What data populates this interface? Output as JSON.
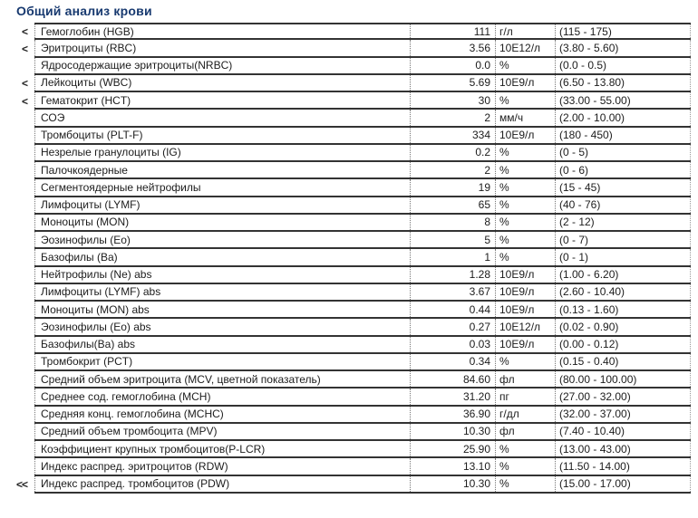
{
  "title": "Общий анализ крови",
  "colors": {
    "title_text": "#17396f",
    "grid_line": "#333333",
    "dotted_separator": "#777777",
    "body_text": "#1c1c1c"
  },
  "table": {
    "rows": [
      {
        "flag": "<",
        "name": "Гемоглобин (HGB)",
        "value": "111",
        "unit": "г/л",
        "range": "(115 - 175)"
      },
      {
        "flag": "<",
        "name": "Эритроциты (RBC)",
        "value": "3.56",
        "unit": "10E12/л",
        "range": "(3.80 - 5.60)"
      },
      {
        "flag": "",
        "name": "Ядросодержащие эритроциты(NRBC)",
        "value": "0.0",
        "unit": "%",
        "range": "(0.0 - 0.5)"
      },
      {
        "flag": "<",
        "name": "Лейкоциты (WBC)",
        "value": "5.69",
        "unit": "10E9/л",
        "range": "(6.50 - 13.80)"
      },
      {
        "flag": "<",
        "name": "Гематокрит (HCT)",
        "value": "30",
        "unit": "%",
        "range": "(33.00 - 55.00)"
      },
      {
        "flag": "",
        "name": "СОЭ",
        "value": "2",
        "unit": "мм/ч",
        "range": "(2.00 - 10.00)"
      },
      {
        "flag": "",
        "name": "Тромбоциты (PLT-F)",
        "value": "334",
        "unit": "10E9/л",
        "range": "(180 - 450)"
      },
      {
        "flag": "",
        "name": "Незрелые гранулоциты (IG)",
        "value": "0.2",
        "unit": "%",
        "range": "(0 - 5)"
      },
      {
        "flag": "",
        "name": "Палочкоядерные",
        "value": "2",
        "unit": "%",
        "range": "(0 - 6)"
      },
      {
        "flag": "",
        "name": "Сегментоядерные нейтрофилы",
        "value": "19",
        "unit": "%",
        "range": "(15 - 45)"
      },
      {
        "flag": "",
        "name": "Лимфоциты (LYMF)",
        "value": "65",
        "unit": "%",
        "range": "(40 - 76)"
      },
      {
        "flag": "",
        "name": "Моноциты (MON)",
        "value": "8",
        "unit": "%",
        "range": "(2 - 12)"
      },
      {
        "flag": "",
        "name": "Эозинофилы (Eo)",
        "value": "5",
        "unit": "%",
        "range": "(0 - 7)"
      },
      {
        "flag": "",
        "name": "Базофилы (Ba)",
        "value": "1",
        "unit": "%",
        "range": "(0 - 1)"
      },
      {
        "flag": "",
        "name": "Нейтрофилы (Ne) abs",
        "value": "1.28",
        "unit": "10E9/л",
        "range": "(1.00 - 6.20)"
      },
      {
        "flag": "",
        "name": "Лимфоциты (LYMF) abs",
        "value": "3.67",
        "unit": "10E9/л",
        "range": "(2.60 - 10.40)"
      },
      {
        "flag": "",
        "name": "Моноциты (MON) abs",
        "value": "0.44",
        "unit": "10E9/л",
        "range": "(0.13 - 1.60)"
      },
      {
        "flag": "",
        "name": "Эозинофилы (Eo) abs",
        "value": "0.27",
        "unit": "10E12/л",
        "range": "(0.02 - 0.90)"
      },
      {
        "flag": "",
        "name": "Базофилы(Ba) abs",
        "value": "0.03",
        "unit": "10E9/л",
        "range": "(0.00 - 0.12)"
      },
      {
        "flag": "",
        "name": "Тромбокрит (PCT)",
        "value": "0.34",
        "unit": "%",
        "range": "(0.15 - 0.40)"
      },
      {
        "flag": "",
        "name": "Средний объем эритроцита (MCV, цветной показатель)",
        "value": "84.60",
        "unit": "фл",
        "range": "(80.00 - 100.00)"
      },
      {
        "flag": "",
        "name": "Среднее сод. гемоглобина (MCH)",
        "value": "31.20",
        "unit": "пг",
        "range": "(27.00 - 32.00)"
      },
      {
        "flag": "",
        "name": "Средняя конц. гемоглобина (MCHC)",
        "value": "36.90",
        "unit": "г/дл",
        "range": "(32.00 - 37.00)"
      },
      {
        "flag": "",
        "name": "Средний объем тромбоцита (MPV)",
        "value": "10.30",
        "unit": "фл",
        "range": "(7.40 - 10.40)"
      },
      {
        "flag": "",
        "name": "Коэффициент крупных тромбоцитов(P-LCR)",
        "value": "25.90",
        "unit": "%",
        "range": "(13.00 - 43.00)"
      },
      {
        "flag": "",
        "name": "Индекс распред. эритроцитов (RDW)",
        "value": "13.10",
        "unit": "%",
        "range": "(11.50 - 14.00)"
      },
      {
        "flag": "<<",
        "name": "Индекс распред. тромбоцитов (PDW)",
        "value": "10.30",
        "unit": "%",
        "range": "(15.00 - 17.00)"
      }
    ]
  }
}
